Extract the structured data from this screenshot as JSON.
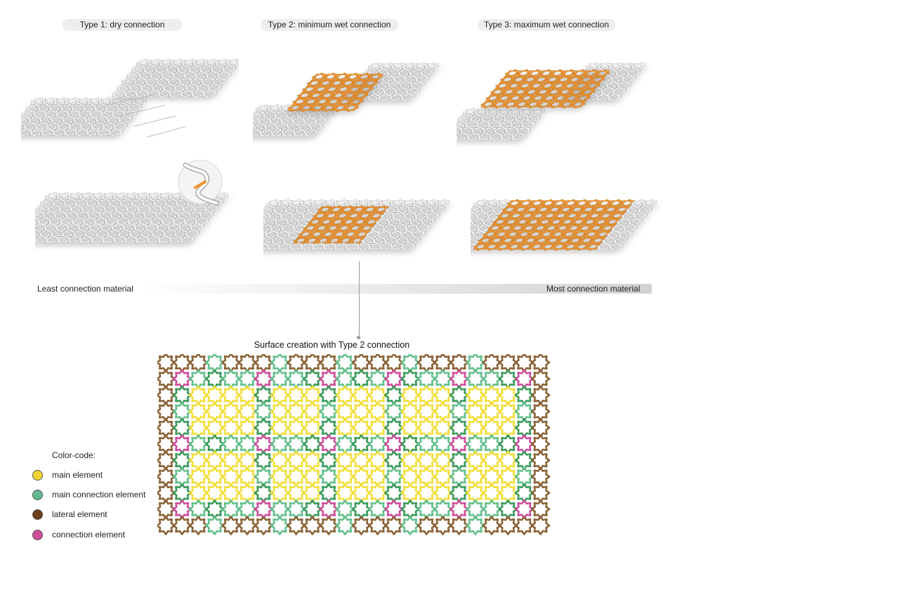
{
  "types": [
    {
      "label": "Type 1: dry connection"
    },
    {
      "label": "Type 2: minimum wet connection"
    },
    {
      "label": "Type 3: maximum wet connection"
    }
  ],
  "scale": {
    "least": "Least connection material",
    "most": "Most connection material"
  },
  "surface": {
    "title": "Surface creation with Type 2 connection"
  },
  "legend": {
    "title": "Color-code:",
    "items": [
      {
        "label": "main element",
        "color": "#f5d531"
      },
      {
        "label": "main connection element",
        "color": "#63b98d"
      },
      {
        "label": "lateral element",
        "color": "#6e3e1c"
      },
      {
        "label": "connection element",
        "color": "#cf4d9b"
      }
    ]
  },
  "colors": {
    "main": "#f2df3c",
    "main_connection": "#64c08d",
    "main_connection_dark": "#3c9a5c",
    "lateral": "#8b6236",
    "connection": "#cf4d9b",
    "wet_connection": "#ef952f",
    "shell": "#f7f7f7"
  }
}
